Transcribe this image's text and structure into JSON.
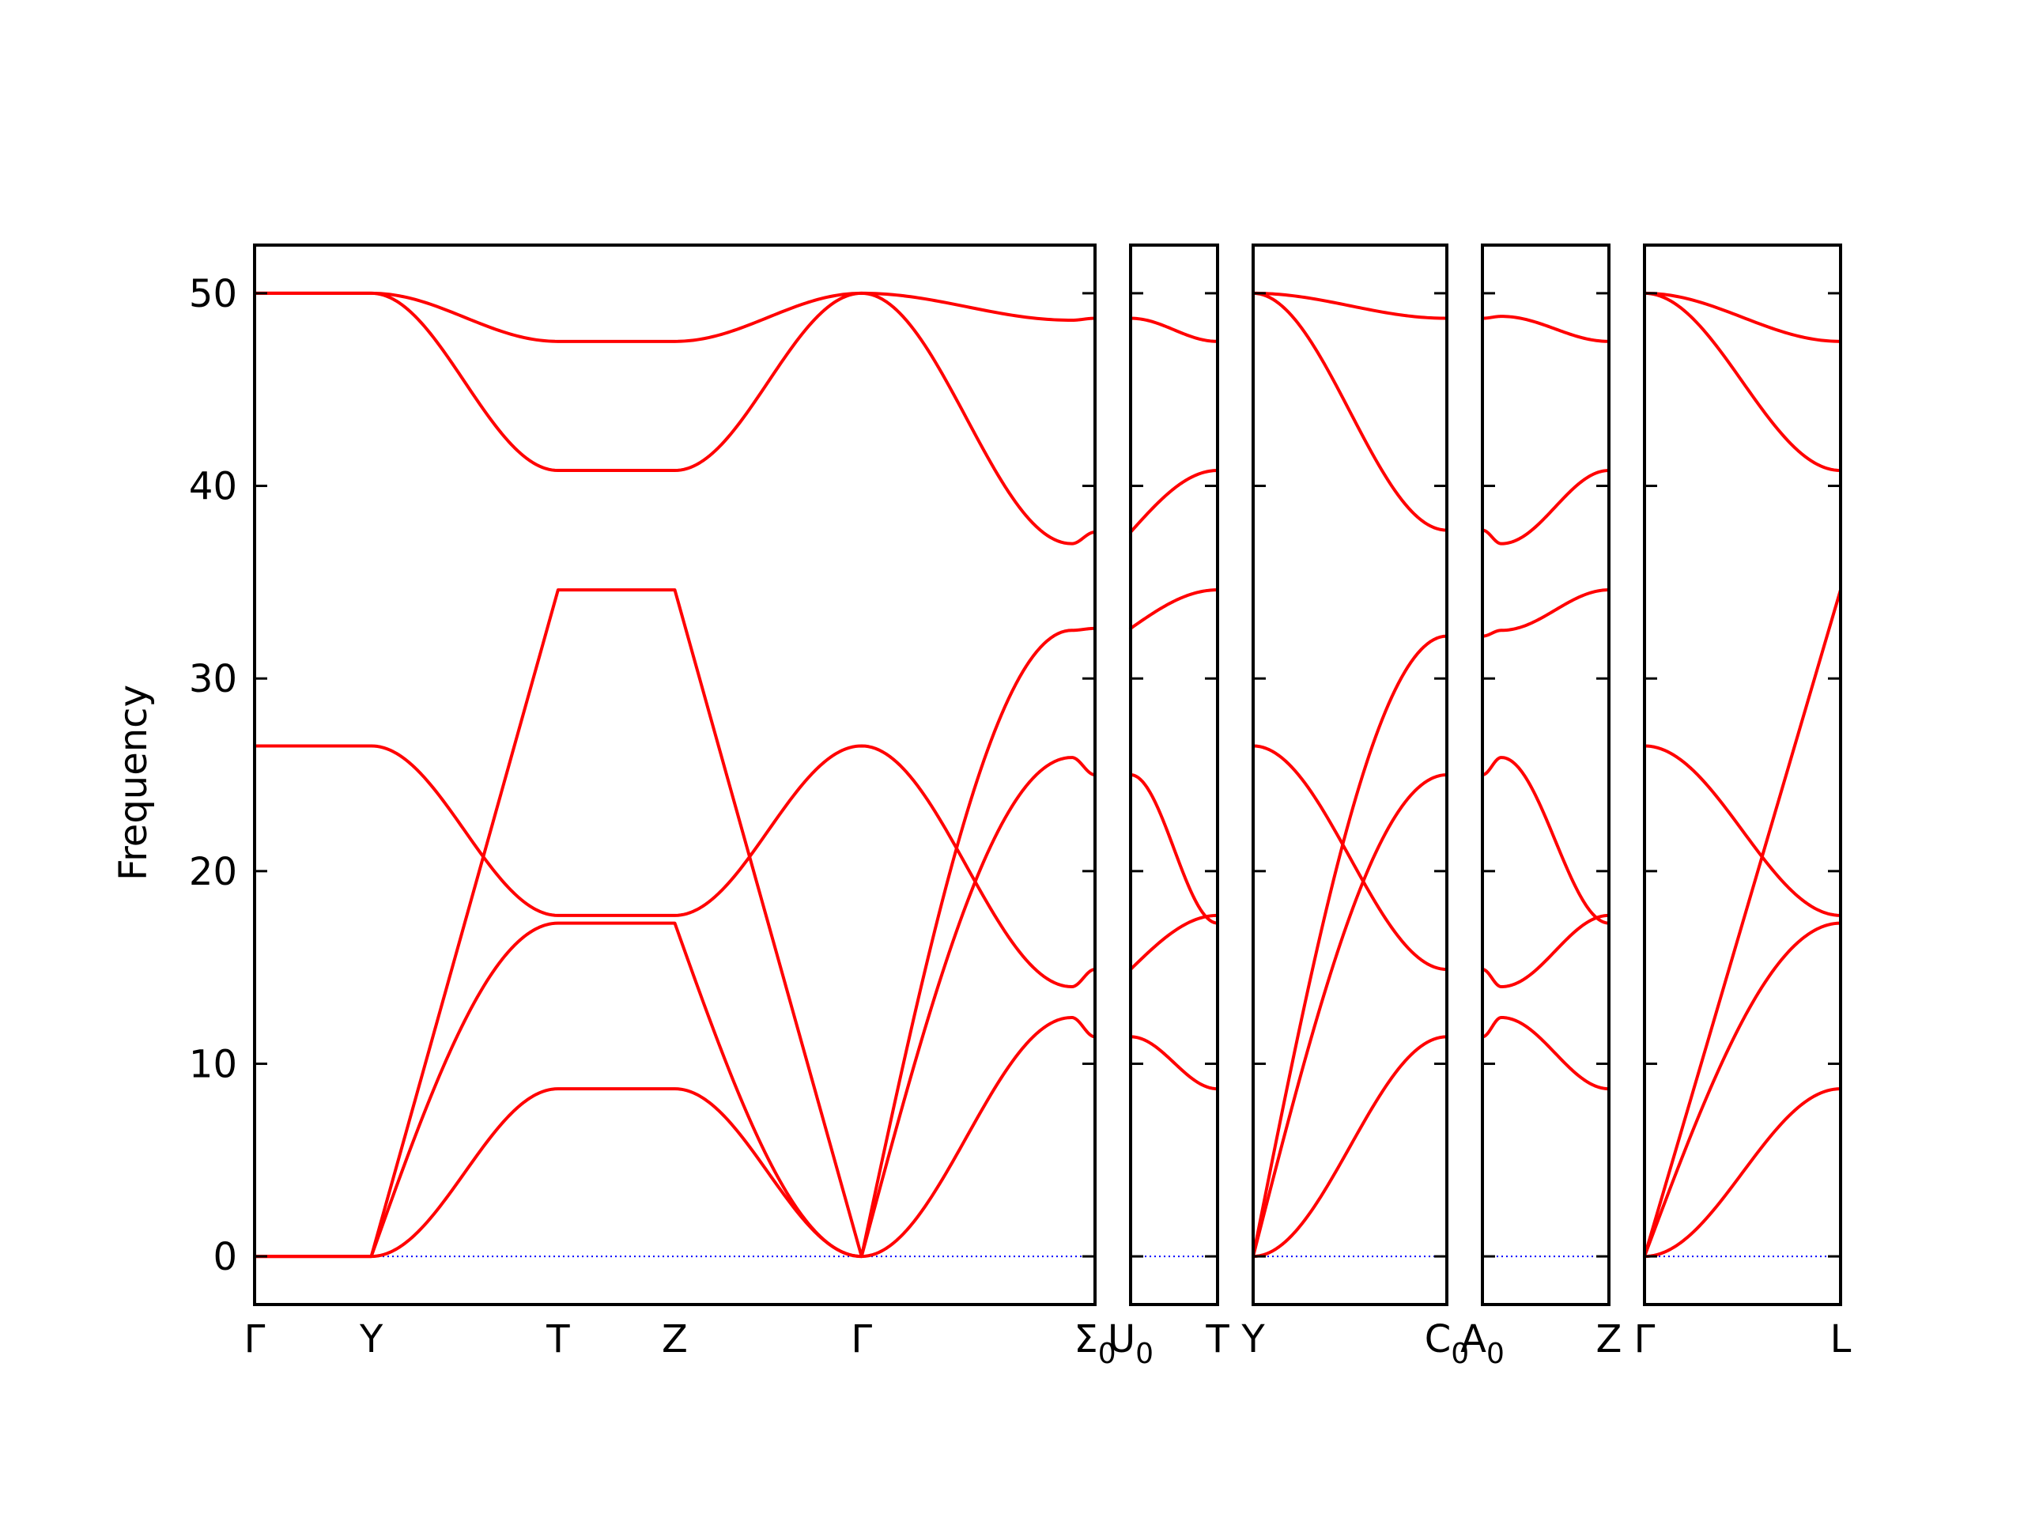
{
  "chart_data": {
    "type": "line",
    "title": "",
    "ylabel": "Frequency",
    "ylim": [
      -2.5,
      52.5
    ],
    "yticks": [
      0,
      10,
      20,
      30,
      40,
      50
    ],
    "grid": false,
    "band_color": "#ff0000",
    "zero_line_color": "#0000ff",
    "panels": [
      {
        "name": "panel-1",
        "xlim": [
          0,
          7.2
        ],
        "ticks": [
          {
            "x": 0,
            "label": "Γ"
          },
          {
            "x": 1,
            "label": "Y"
          },
          {
            "x": 2.6,
            "label": "T"
          },
          {
            "x": 3.6,
            "label": "Z"
          },
          {
            "x": 5.2,
            "label": "Γ"
          },
          {
            "x": 7.2,
            "label": "Σ0",
            "base": "Σ",
            "sub": "0"
          }
        ],
        "segments": [
          {
            "x0": 0,
            "x1": 1,
            "bands": [
              [
                0,
                0
              ],
              [
                0,
                0
              ],
              [
                0,
                0
              ],
              [
                26.5,
                26.5
              ],
              [
                50,
                50
              ],
              [
                50,
                50
              ]
            ]
          },
          {
            "x0": 1,
            "x1": 2.6,
            "bands": [
              [
                0,
                8.7,
                "cos"
              ],
              [
                0,
                17.3,
                "sin"
              ],
              [
                0,
                34.6,
                "lin"
              ],
              [
                26.5,
                17.7,
                "cos"
              ],
              [
                50,
                40.8,
                "cos"
              ],
              [
                50,
                47.5,
                "cos"
              ]
            ]
          },
          {
            "x0": 2.6,
            "x1": 3.6,
            "bands": [
              [
                8.7,
                8.7
              ],
              [
                17.3,
                17.3
              ],
              [
                34.6,
                34.6
              ],
              [
                17.7,
                17.7
              ],
              [
                40.8,
                40.8
              ],
              [
                47.5,
                47.5
              ]
            ]
          },
          {
            "x0": 3.6,
            "x1": 5.2,
            "bands": [
              [
                8.7,
                0,
                "cos"
              ],
              [
                17.3,
                0,
                "sin"
              ],
              [
                34.6,
                0,
                "lin"
              ],
              [
                17.7,
                26.5,
                "cos"
              ],
              [
                40.8,
                50,
                "cos"
              ],
              [
                47.5,
                50,
                "cos"
              ]
            ]
          },
          {
            "x0": 5.2,
            "x1": 7.0,
            "bands": [
              [
                0,
                12.4,
                "cos"
              ],
              [
                0,
                25.9,
                "sin"
              ],
              [
                0,
                32.5,
                "sin"
              ],
              [
                26.5,
                14.0,
                "cos"
              ],
              [
                50,
                37.0,
                "cos"
              ],
              [
                50,
                48.6,
                "cos"
              ]
            ]
          },
          {
            "x0": 7.0,
            "x1": 7.2,
            "bands": [
              [
                12.4,
                11.4,
                "cos"
              ],
              [
                25.9,
                25.0,
                "cos"
              ],
              [
                32.5,
                32.6,
                "cos"
              ],
              [
                14.0,
                14.9,
                "cos"
              ],
              [
                37.0,
                37.6,
                "cos"
              ],
              [
                48.6,
                48.7,
                "cos"
              ]
            ]
          }
        ]
      },
      {
        "name": "panel-2",
        "xlim": [
          0,
          1
        ],
        "ticks": [
          {
            "x": 0,
            "label": "U0",
            "base": "U",
            "sub": "0"
          },
          {
            "x": 1,
            "label": "T"
          }
        ],
        "segments": [
          {
            "x0": 0,
            "x1": 1,
            "bands": [
              [
                11.4,
                8.7,
                "cos"
              ],
              [
                14.9,
                17.7,
                "sin"
              ],
              [
                25.0,
                17.3,
                "cos"
              ],
              [
                32.6,
                34.6,
                "sin"
              ],
              [
                37.6,
                40.8,
                "sin"
              ],
              [
                48.7,
                47.5,
                "cos"
              ]
            ]
          }
        ]
      },
      {
        "name": "panel-3",
        "xlim": [
          0,
          1
        ],
        "ticks": [
          {
            "x": 0,
            "label": "Y"
          },
          {
            "x": 1,
            "label": "C0",
            "base": "C",
            "sub": "0"
          }
        ],
        "segments": [
          {
            "x0": 0,
            "x1": 1,
            "bands": [
              [
                0,
                11.4,
                "cos"
              ],
              [
                0,
                25.0,
                "sin"
              ],
              [
                0,
                32.2,
                "sin"
              ],
              [
                26.5,
                14.9,
                "cos"
              ],
              [
                50,
                37.7,
                "cos"
              ],
              [
                50,
                48.7,
                "cos"
              ]
            ]
          }
        ]
      },
      {
        "name": "panel-4",
        "xlim": [
          0,
          1
        ],
        "ticks": [
          {
            "x": 0,
            "label": "A0",
            "base": "A",
            "sub": "0"
          },
          {
            "x": 1,
            "label": "Z"
          }
        ],
        "segments": [
          {
            "x0": 0,
            "x1": 0.15,
            "bands": [
              [
                11.4,
                12.4,
                "cos"
              ],
              [
                14.9,
                14.0,
                "cos"
              ],
              [
                25.0,
                25.9,
                "cos"
              ],
              [
                32.2,
                32.5,
                "cos"
              ],
              [
                37.7,
                37.0,
                "cos"
              ],
              [
                48.7,
                48.8,
                "cos"
              ]
            ]
          },
          {
            "x0": 0.15,
            "x1": 1,
            "bands": [
              [
                12.4,
                8.7,
                "cos"
              ],
              [
                14.0,
                17.7,
                "cos"
              ],
              [
                25.9,
                17.3,
                "cos"
              ],
              [
                32.5,
                34.6,
                "cos"
              ],
              [
                37.0,
                40.8,
                "cos"
              ],
              [
                48.8,
                47.5,
                "cos"
              ]
            ]
          }
        ]
      },
      {
        "name": "panel-5",
        "xlim": [
          0,
          1
        ],
        "ticks": [
          {
            "x": 0,
            "label": "Γ"
          },
          {
            "x": 1,
            "label": "L"
          }
        ],
        "segments": [
          {
            "x0": 0,
            "x1": 1,
            "bands": [
              [
                0,
                8.7,
                "cos"
              ],
              [
                0,
                17.3,
                "sin"
              ],
              [
                0,
                34.6,
                "lin"
              ],
              [
                26.5,
                17.7,
                "cos"
              ],
              [
                50,
                40.8,
                "cos"
              ],
              [
                50,
                47.5,
                "cos"
              ]
            ]
          }
        ]
      }
    ]
  }
}
